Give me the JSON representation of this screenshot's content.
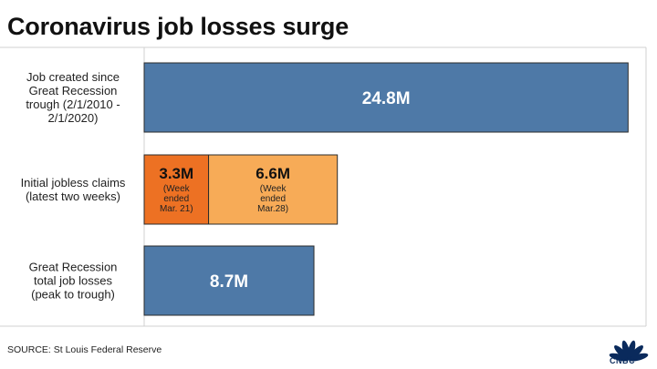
{
  "chart_data": {
    "type": "bar",
    "orientation": "horizontal",
    "title": "Coronavirus job losses surge",
    "xlim": [
      0,
      25.3
    ],
    "unit": "M",
    "categories": [
      {
        "label_lines": [
          "Job created since",
          "Great Recession",
          "trough (2/1/2010 -",
          "2/1/2020)"
        ],
        "segments": [
          {
            "value": 24.8,
            "label": "24.8M",
            "color": "#4e79a7"
          }
        ]
      },
      {
        "label_lines": [
          "Initial jobless claims",
          "(latest two weeks)"
        ],
        "segments": [
          {
            "value": 3.3,
            "label": "3.3M",
            "note_lines": [
              "(Week",
              "ended",
              "Mar. 21)"
            ],
            "color": "#ed7123"
          },
          {
            "value": 6.6,
            "label": "6.6M",
            "note_lines": [
              "(Week",
              "ended",
              "Mar.28)"
            ],
            "color": "#f7ab57"
          }
        ]
      },
      {
        "label_lines": [
          "Great Recession",
          "total job losses",
          "(peak to trough)"
        ],
        "segments": [
          {
            "value": 8.7,
            "label": "8.7M",
            "color": "#4e79a7"
          }
        ]
      }
    ],
    "source": "SOURCE: St Louis Federal Reserve"
  },
  "brand": {
    "logo_text": "CNBC",
    "logo_icon": "peacock-icon"
  }
}
